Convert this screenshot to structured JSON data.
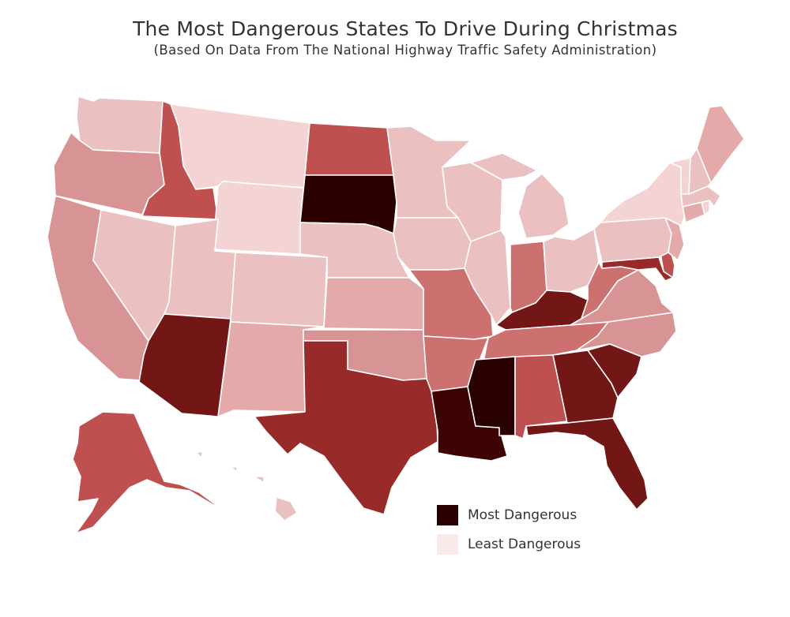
{
  "title": "The Most Dangerous States To Drive During Christmas",
  "subtitle": "(Based On Data From The National Highway Traffic Safety Administration)",
  "legend": {
    "most": {
      "label": "Most Dangerous",
      "color": "#2b0000"
    },
    "least": {
      "label": "Least Dangerous",
      "color": "#fbeaea"
    }
  },
  "map_data": {
    "type": "choropleth",
    "scale": "danger level 0 (least) to 1 (most)",
    "palette": [
      "#fbeaea",
      "#f3d3d3",
      "#ebc0c0",
      "#e4aaaa",
      "#d89494",
      "#cd7070",
      "#bf5050",
      "#992a2a",
      "#731616",
      "#3d0404",
      "#2b0000"
    ],
    "states": {
      "WA": 0.15,
      "OR": 0.35,
      "CA": 0.42,
      "ID": 0.62,
      "NV": 0.22,
      "MT": 0.05,
      "WY": 0.05,
      "UT": 0.15,
      "AZ": 0.82,
      "CO": 0.15,
      "NM": 0.32,
      "ND": 0.55,
      "SD": 1.0,
      "NE": 0.15,
      "KS": 0.32,
      "OK": 0.38,
      "TX": 0.74,
      "MN": 0.22,
      "IA": 0.2,
      "MO": 0.48,
      "AR": 0.5,
      "LA": 0.9,
      "WI": 0.2,
      "IL": 0.2,
      "MI": 0.2,
      "IN": 0.5,
      "OH": 0.22,
      "KY": 0.8,
      "TN": 0.45,
      "MS": 1.0,
      "AL": 0.62,
      "GA": 0.82,
      "FL": 0.84,
      "SC": 0.84,
      "NC": 0.42,
      "VA": 0.38,
      "WV": 0.48,
      "MD": 0.72,
      "DE": 0.55,
      "PA": 0.15,
      "NJ": 0.3,
      "NY": 0.1,
      "CT": 0.3,
      "RI": 0.1,
      "MA": 0.15,
      "VT": 0.05,
      "NH": 0.2,
      "ME": 0.32,
      "AK": 0.62,
      "HI": 0.22
    }
  }
}
